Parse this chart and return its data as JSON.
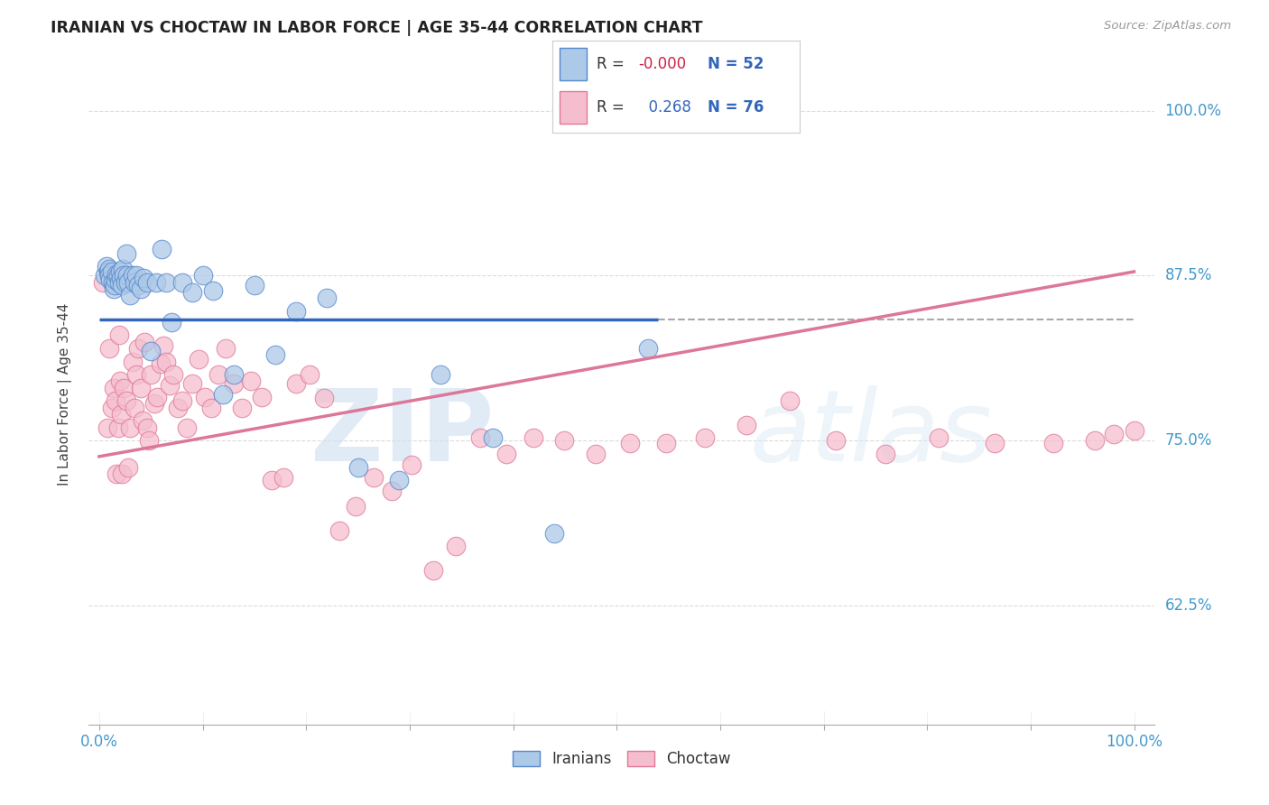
{
  "title": "IRANIAN VS CHOCTAW IN LABOR FORCE | AGE 35-44 CORRELATION CHART",
  "source": "Source: ZipAtlas.com",
  "ylabel": "In Labor Force | Age 35-44",
  "ytick_labels": [
    "62.5%",
    "75.0%",
    "87.5%",
    "100.0%"
  ],
  "ytick_values": [
    0.625,
    0.75,
    0.875,
    1.0
  ],
  "xlim": [
    -0.01,
    1.02
  ],
  "ylim": [
    0.535,
    1.035
  ],
  "iranian_color": "#adc9e8",
  "iranian_edge_color": "#5588cc",
  "choctaw_color": "#f5bece",
  "choctaw_edge_color": "#e07898",
  "iranian_R": "-0.000",
  "iranian_N": 52,
  "choctaw_R": "0.268",
  "choctaw_N": 76,
  "watermark_zip": "ZIP",
  "watermark_atlas": "atlas",
  "iranians_label": "Iranians",
  "choctaw_label": "Choctaw",
  "iranian_line_y": 0.842,
  "iranian_line_x_end": 0.54,
  "choctaw_line_start_y": 0.738,
  "choctaw_line_end_y": 0.878,
  "iranian_line_color": "#3366bb",
  "choctaw_line_color": "#dd7799",
  "dashed_line_color": "#aaaaaa",
  "grid_color": "#cccccc",
  "background_color": "#ffffff",
  "iranians_x": [
    0.005,
    0.007,
    0.009,
    0.01,
    0.01,
    0.011,
    0.012,
    0.013,
    0.014,
    0.015,
    0.016,
    0.017,
    0.018,
    0.019,
    0.02,
    0.021,
    0.022,
    0.023,
    0.024,
    0.025,
    0.026,
    0.027,
    0.028,
    0.03,
    0.032,
    0.034,
    0.036,
    0.038,
    0.04,
    0.043,
    0.046,
    0.05,
    0.055,
    0.06,
    0.065,
    0.07,
    0.08,
    0.09,
    0.1,
    0.11,
    0.12,
    0.13,
    0.15,
    0.17,
    0.19,
    0.22,
    0.25,
    0.29,
    0.33,
    0.38,
    0.44,
    0.53
  ],
  "iranians_y": [
    0.875,
    0.882,
    0.878,
    0.88,
    0.875,
    0.872,
    0.878,
    0.87,
    0.865,
    0.868,
    0.872,
    0.876,
    0.875,
    0.87,
    0.878,
    0.873,
    0.868,
    0.88,
    0.875,
    0.87,
    0.892,
    0.875,
    0.87,
    0.86,
    0.875,
    0.87,
    0.875,
    0.868,
    0.865,
    0.873,
    0.87,
    0.818,
    0.87,
    0.895,
    0.87,
    0.84,
    0.87,
    0.862,
    0.875,
    0.864,
    0.785,
    0.8,
    0.868,
    0.815,
    0.848,
    0.858,
    0.73,
    0.72,
    0.8,
    0.752,
    0.68,
    0.82
  ],
  "choctaw_x": [
    0.004,
    0.008,
    0.01,
    0.012,
    0.014,
    0.016,
    0.017,
    0.018,
    0.019,
    0.02,
    0.021,
    0.022,
    0.024,
    0.026,
    0.028,
    0.03,
    0.032,
    0.034,
    0.036,
    0.038,
    0.04,
    0.042,
    0.044,
    0.046,
    0.048,
    0.05,
    0.053,
    0.056,
    0.059,
    0.062,
    0.065,
    0.068,
    0.072,
    0.076,
    0.08,
    0.085,
    0.09,
    0.096,
    0.102,
    0.108,
    0.115,
    0.122,
    0.13,
    0.138,
    0.147,
    0.157,
    0.167,
    0.178,
    0.19,
    0.203,
    0.217,
    0.232,
    0.248,
    0.265,
    0.283,
    0.302,
    0.323,
    0.345,
    0.368,
    0.393,
    0.42,
    0.449,
    0.48,
    0.513,
    0.548,
    0.585,
    0.625,
    0.667,
    0.712,
    0.76,
    0.811,
    0.865,
    0.922,
    0.962,
    0.98,
    1.0
  ],
  "choctaw_y": [
    0.87,
    0.76,
    0.82,
    0.775,
    0.79,
    0.78,
    0.725,
    0.76,
    0.83,
    0.795,
    0.77,
    0.725,
    0.79,
    0.78,
    0.73,
    0.76,
    0.81,
    0.775,
    0.8,
    0.82,
    0.79,
    0.765,
    0.825,
    0.76,
    0.75,
    0.8,
    0.778,
    0.783,
    0.808,
    0.822,
    0.81,
    0.792,
    0.8,
    0.775,
    0.78,
    0.76,
    0.793,
    0.812,
    0.783,
    0.775,
    0.8,
    0.82,
    0.793,
    0.775,
    0.795,
    0.783,
    0.72,
    0.722,
    0.793,
    0.8,
    0.782,
    0.682,
    0.7,
    0.722,
    0.712,
    0.732,
    0.652,
    0.67,
    0.752,
    0.74,
    0.752,
    0.75,
    0.74,
    0.748,
    0.748,
    0.752,
    0.762,
    0.78,
    0.75,
    0.74,
    0.752,
    0.748,
    0.748,
    0.75,
    0.755,
    0.758
  ]
}
